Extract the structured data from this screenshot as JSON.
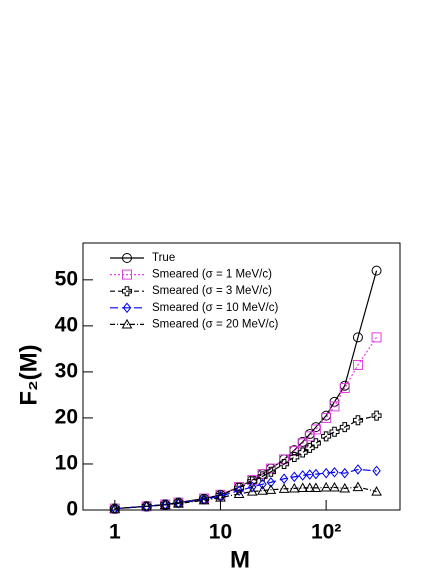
{
  "chart_data": {
    "type": "line",
    "x_label": "M",
    "y_label": "F₂(M)",
    "xscale": "log",
    "xlim": [
      0.5,
      500
    ],
    "xticks": [
      1,
      10,
      {
        "value": 100,
        "label": "10²"
      }
    ],
    "ylim": [
      0,
      58
    ],
    "yticks": [
      0,
      10,
      20,
      30,
      40,
      50
    ],
    "legend": "upper-left",
    "x": [
      1,
      2,
      3,
      4,
      7,
      10,
      15,
      20,
      25,
      30,
      40,
      50,
      60,
      70,
      80,
      100,
      120,
      150,
      200,
      300
    ],
    "series": [
      {
        "name": "True",
        "color": "#000000",
        "marker": "circle",
        "dash": "solid",
        "values": [
          0.3,
          0.8,
          1.2,
          1.6,
          2.5,
          3.3,
          5,
          6.5,
          7.8,
          9,
          11,
          13,
          14.8,
          16.5,
          18,
          20.5,
          23.5,
          27,
          37.5,
          52
        ]
      },
      {
        "name": "Smeared (σ = 1 MeV/c)",
        "color": "#e040e0",
        "marker": "square",
        "dash": "dotted",
        "values": [
          0.3,
          0.8,
          1.2,
          1.6,
          2.5,
          3.3,
          5,
          6.5,
          7.8,
          9,
          11,
          12.8,
          14.5,
          16,
          17.5,
          20,
          22.5,
          26.5,
          31.5,
          37.5
        ]
      },
      {
        "name": "Smeared (σ = 3 MeV/c)",
        "color": "#000000",
        "marker": "plus",
        "dash": "dashed",
        "values": [
          0.3,
          0.8,
          1.2,
          1.6,
          2.4,
          3.2,
          4.8,
          6.2,
          7.3,
          8.3,
          10,
          11.5,
          12.5,
          13.5,
          14.5,
          16,
          17,
          18,
          19.5,
          20.5
        ]
      },
      {
        "name": "Smeared (σ = 10 MeV/c)",
        "color": "#0000ee",
        "marker": "diamond",
        "dash": "longdash",
        "values": [
          0.3,
          0.8,
          1.2,
          1.5,
          2.3,
          3,
          4.2,
          5,
          5.6,
          6,
          6.8,
          7.2,
          7.5,
          7.7,
          7.8,
          8,
          8.2,
          8,
          8.8,
          8.5
        ]
      },
      {
        "name": "Smeared (σ = 20 MeV/c)",
        "color": "#000000",
        "marker": "triangle",
        "dash": "dashdot",
        "values": [
          0.3,
          0.8,
          1.1,
          1.4,
          2.1,
          2.7,
          3.5,
          4,
          4.2,
          4.4,
          4.6,
          4.7,
          4.8,
          4.8,
          4.8,
          4.9,
          4.9,
          4.7,
          5,
          4
        ]
      }
    ]
  }
}
